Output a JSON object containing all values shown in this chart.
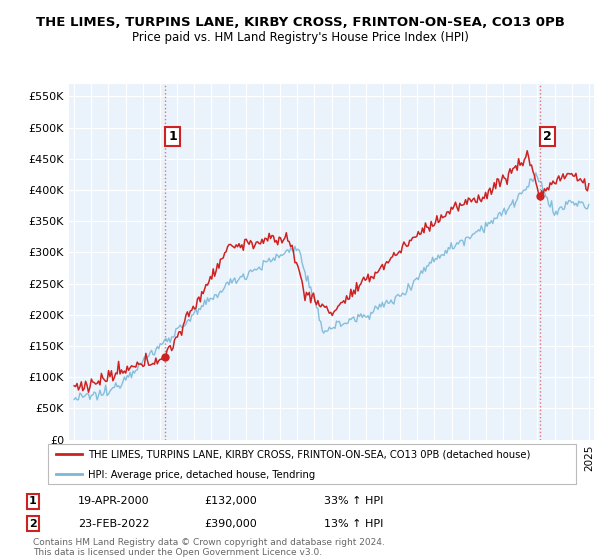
{
  "title_line1": "THE LIMES, TURPINS LANE, KIRBY CROSS, FRINTON-ON-SEA, CO13 0PB",
  "title_line2": "Price paid vs. HM Land Registry's House Price Index (HPI)",
  "ylim": [
    0,
    570000
  ],
  "yticks": [
    0,
    50000,
    100000,
    150000,
    200000,
    250000,
    300000,
    350000,
    400000,
    450000,
    500000,
    550000
  ],
  "ytick_labels": [
    "£0",
    "£50K",
    "£100K",
    "£150K",
    "£200K",
    "£250K",
    "£300K",
    "£350K",
    "£400K",
    "£450K",
    "£500K",
    "£550K"
  ],
  "xlim_start": 1994.7,
  "xlim_end": 2025.3,
  "sale1_date": 2000.3,
  "sale1_price": 132000,
  "sale1_label": "1",
  "sale2_date": 2022.15,
  "sale2_price": 390000,
  "sale2_label": "2",
  "hpi_color": "#7ab8d9",
  "sale_color": "#cc2222",
  "legend_sale_label": "THE LIMES, TURPINS LANE, KIRBY CROSS, FRINTON-ON-SEA, CO13 0PB (detached house)",
  "legend_hpi_label": "HPI: Average price, detached house, Tendring",
  "annotation1_date": "19-APR-2000",
  "annotation1_price": "£132,000",
  "annotation1_hpi": "33% ↑ HPI",
  "annotation2_date": "23-FEB-2022",
  "annotation2_price": "£390,000",
  "annotation2_hpi": "13% ↑ HPI",
  "footer": "Contains HM Land Registry data © Crown copyright and database right 2024.\nThis data is licensed under the Open Government Licence v3.0.",
  "background_color": "#ffffff",
  "plot_bg_color": "#eaf3fb",
  "grid_color": "#ffffff"
}
